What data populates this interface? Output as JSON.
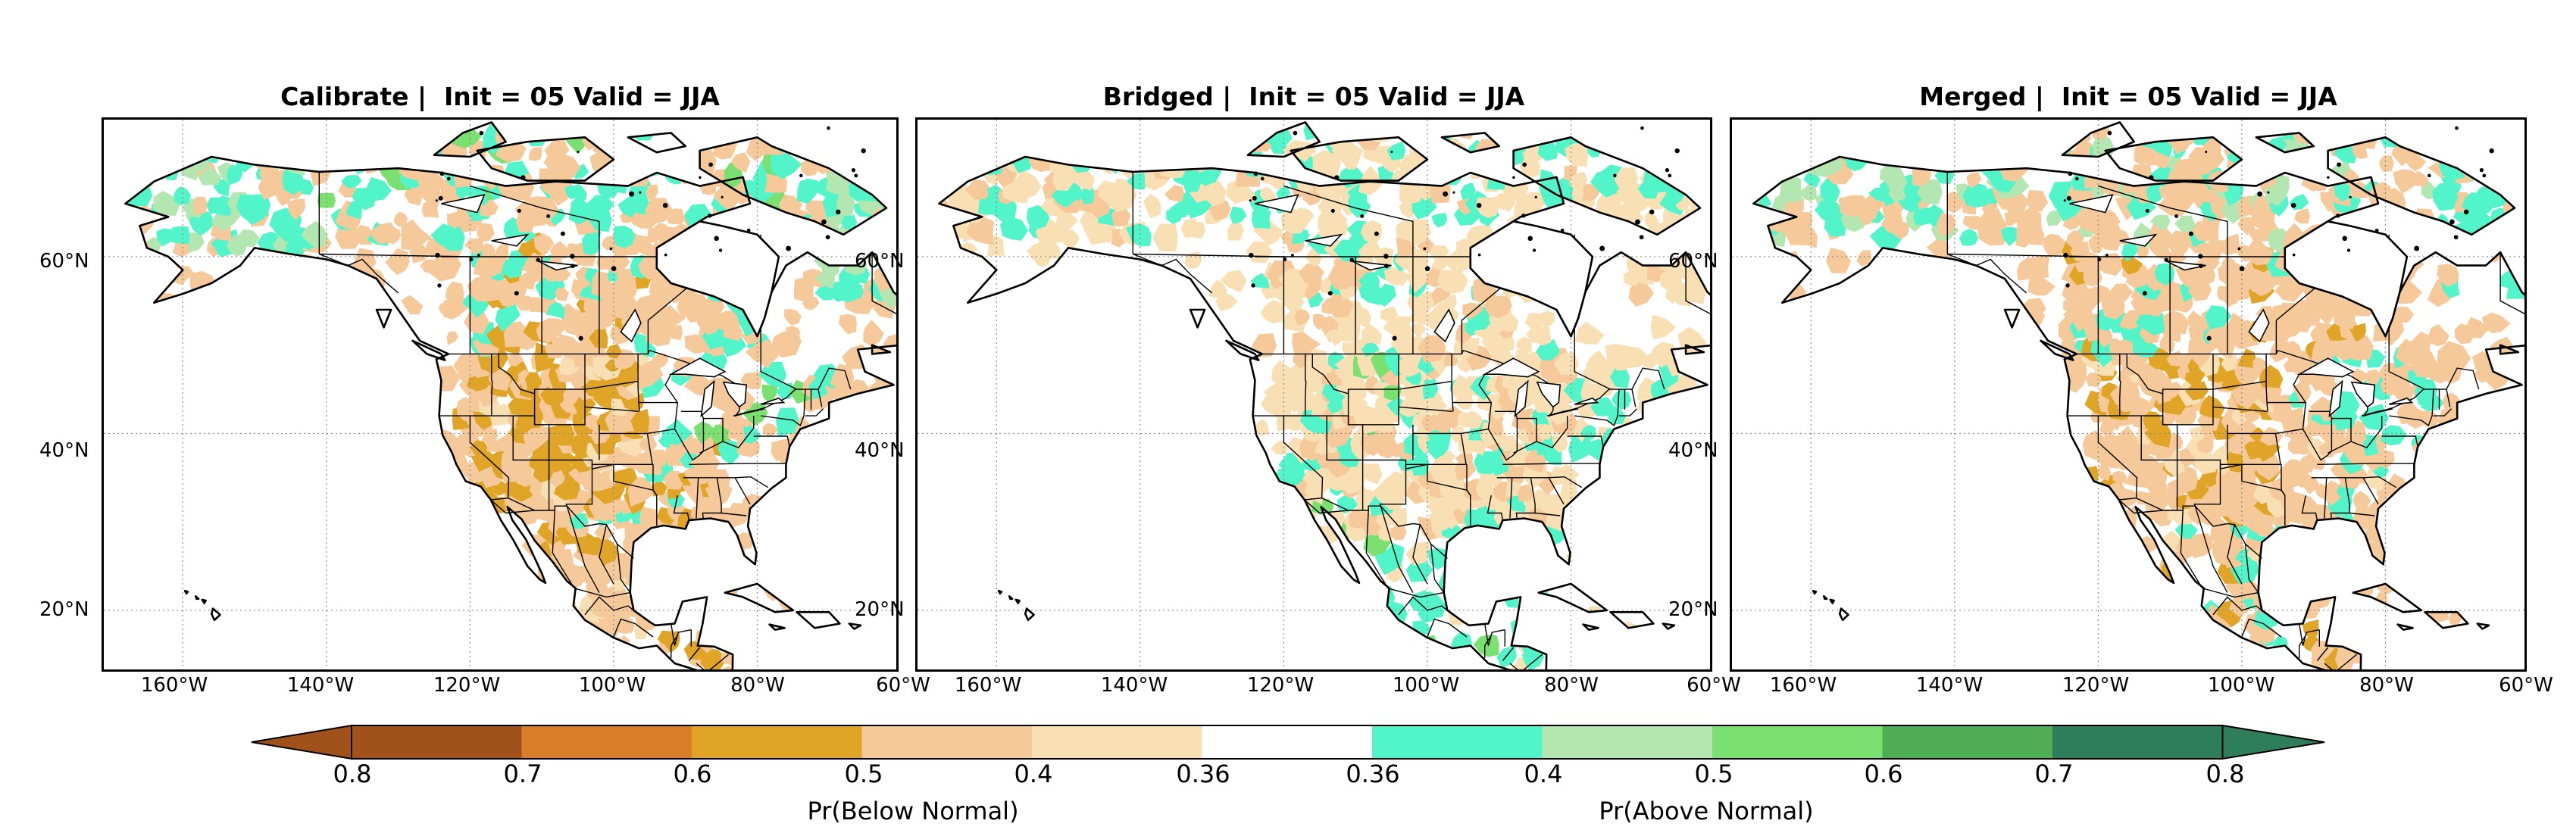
{
  "panels": [
    {
      "title": "Calibrate |  Init = 05 Valid = JJA"
    },
    {
      "title": "Bridged |  Init = 05 Valid = JJA"
    },
    {
      "title": "Merged |  Init = 05 Valid = JJA"
    }
  ],
  "lat_labels": [
    "60°N",
    "40°N",
    "20°N"
  ],
  "lon_labels": [
    "160°W",
    "140°W",
    "120°W",
    "100°W",
    "80°W",
    "60°W"
  ],
  "colorbar": {
    "below_label": "Pr(Below Normal)",
    "above_label": "Pr(Above Normal)",
    "ticks": [
      "0.8",
      "0.7",
      "0.6",
      "0.5",
      "0.4",
      "0.36",
      "0.36",
      "0.4",
      "0.5",
      "0.6",
      "0.7",
      "0.8"
    ],
    "colors": [
      "#a0521a",
      "#d87d28",
      "#e0a427",
      "#f6c99a",
      "#f8e0b4",
      "#ffffff",
      "#52f5c9",
      "#b3e6b0",
      "#7ae070",
      "#4fad55",
      "#2e7e5b"
    ]
  }
}
